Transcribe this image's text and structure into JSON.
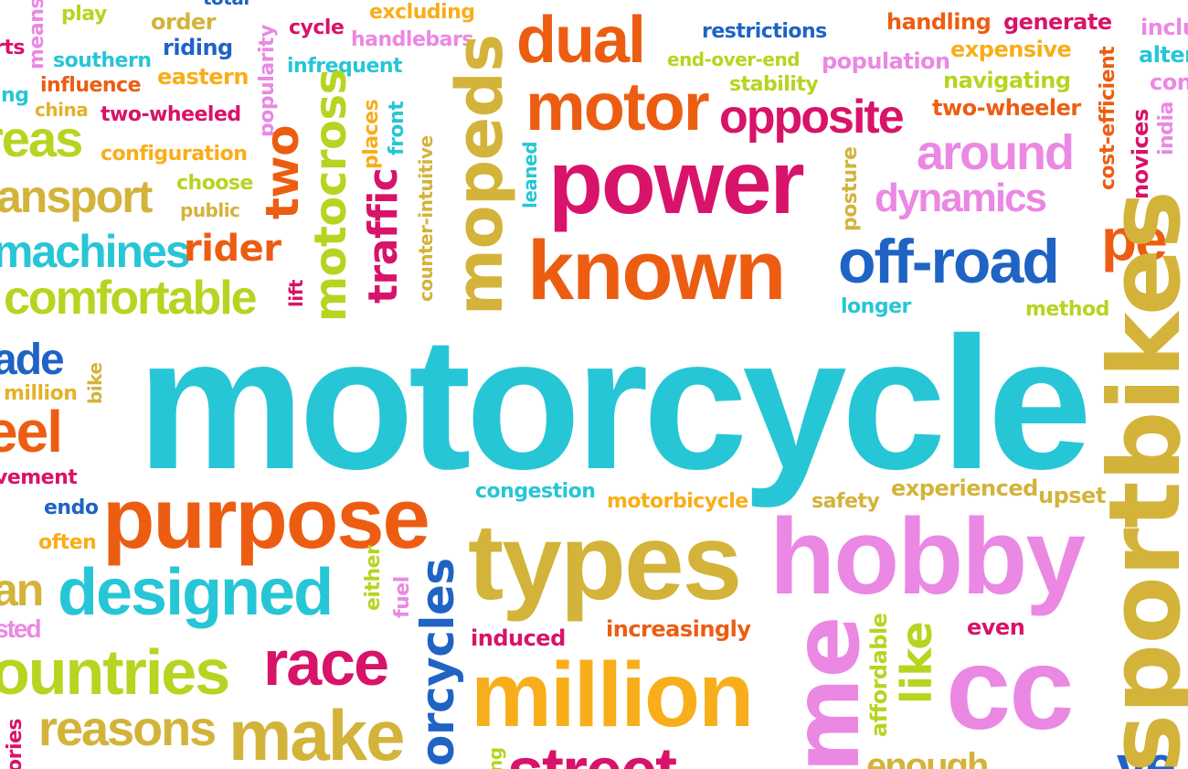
{
  "word_cloud": {
    "main_word": "motorcycle",
    "words": [
      "means",
      "play",
      "total",
      "order",
      "excluding",
      "dual",
      "restrictions",
      "handling",
      "generate",
      "inclu",
      "rts",
      "riding",
      "cycle",
      "handlebars",
      "end-over-end",
      "expensive",
      "alter",
      "ing",
      "southern",
      "infrequent",
      "population",
      "constr",
      "influence",
      "eastern",
      "stability",
      "navigating",
      "china",
      "two-wheeled",
      "popularity",
      "motor",
      "two-wheeler",
      "reas",
      "opposite",
      "around",
      "cost-efficient",
      "novices",
      "india",
      "configuration",
      "places",
      "front",
      "power",
      "posture",
      "choose",
      "public",
      "two",
      "motocross",
      "mopeds",
      "counter-intuitive",
      "leaned",
      "dynamics",
      "ansport",
      "traffic",
      "known",
      "off-road",
      "pe",
      "machines",
      "rider",
      "lift",
      "comfortable",
      "longer",
      "method",
      "ade",
      "bike",
      "motorcycle",
      "sportbikes",
      "million",
      "eel",
      "vement",
      "congestion",
      "experienced",
      "upset",
      "endo",
      "purpose",
      "motorbicycle",
      "safety",
      "often",
      "types",
      "hobby",
      "designed",
      "either",
      "fuel",
      "an",
      "sted",
      "induced",
      "increasingly",
      "even",
      "ountries",
      "race",
      "orcycles",
      "affordable",
      "like",
      "cc",
      "me",
      "reasons",
      "make",
      "street",
      "enough",
      "ories",
      "ng",
      "ve"
    ]
  },
  "colors": {
    "cyan": "#27c6d6",
    "orange": "#ec5d12",
    "magenta": "#d8136a",
    "pink": "#ea88e3",
    "olive": "#d3b33a",
    "lime": "#b5d520",
    "blue": "#1f63c4",
    "amber": "#f8ae1a",
    "gold": "#e3b22a"
  }
}
